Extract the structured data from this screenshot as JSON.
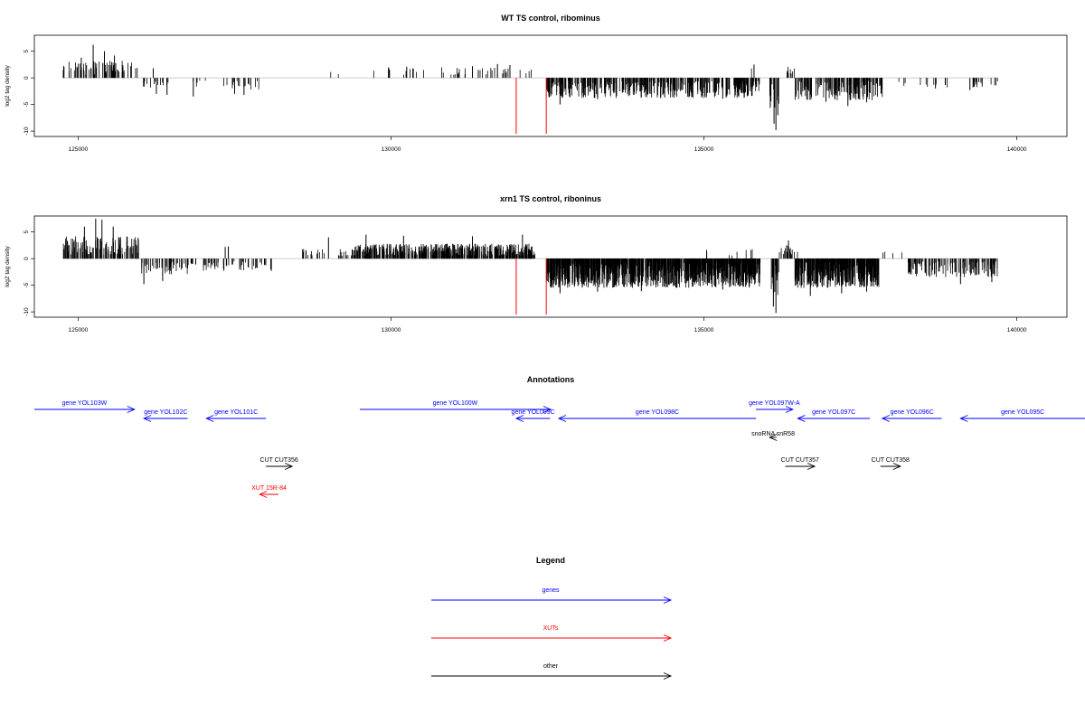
{
  "chart_data": [
    {
      "type": "bar",
      "title": "WT TS control, ribominus",
      "xlabel": "",
      "ylabel": "log2 tag density",
      "xlim": [
        124300,
        140800
      ],
      "ylim": [
        -11,
        8
      ],
      "xticks": [
        125000,
        130000,
        135000,
        140000
      ],
      "yticks": [
        5,
        0,
        -5,
        -10
      ],
      "baseline_color": "#bbbbbb",
      "bar_color": "#000000",
      "marker_color": "#ff0000",
      "markers": [
        {
          "x": 132000,
          "ymin": -10.5,
          "ymax": 0
        },
        {
          "x": 132480,
          "ymin": -10.5,
          "ymax": 0
        }
      ],
      "regions": [
        {
          "x0": 124750,
          "x1": 125950,
          "ymin": 0.6,
          "ymax": 3.2,
          "density": 0.06,
          "spikes": [
            [
              125240,
              6.2
            ],
            [
              125420,
              5.0
            ],
            [
              125050,
              3.8
            ],
            [
              125580,
              4.2
            ]
          ]
        },
        {
          "x0": 126000,
          "x1": 126450,
          "ymin": -1.8,
          "ymax": -0.5,
          "density": 0.03,
          "spikes": [
            [
              126250,
              -3.0
            ],
            [
              126420,
              -3.2
            ],
            [
              126200,
              1.8
            ]
          ]
        },
        {
          "x0": 126800,
          "x1": 127200,
          "ymin": -2.0,
          "ymax": -0.5,
          "density": 0.012,
          "spikes": [
            [
              126840,
              -3.5
            ]
          ]
        },
        {
          "x0": 127300,
          "x1": 127900,
          "ymin": -2.2,
          "ymax": -0.5,
          "density": 0.03,
          "spikes": [
            [
              127500,
              -3.0
            ],
            [
              127650,
              -3.2
            ]
          ]
        },
        {
          "x0": 128950,
          "x1": 129450,
          "ymin": 0.4,
          "ymax": 1.2,
          "density": 0.004,
          "spikes": []
        },
        {
          "x0": 129700,
          "x1": 130600,
          "ymin": 0.5,
          "ymax": 1.8,
          "density": 0.012,
          "spikes": [
            [
              129960,
              2.0
            ],
            [
              130250,
              2.1
            ]
          ]
        },
        {
          "x0": 130750,
          "x1": 132100,
          "ymin": 0.5,
          "ymax": 2.0,
          "density": 0.022,
          "spikes": [
            [
              131700,
              2.6
            ],
            [
              131900,
              2.4
            ],
            [
              131300,
              2.2
            ]
          ]
        },
        {
          "x0": 132100,
          "x1": 132300,
          "ymin": 0.5,
          "ymax": 2.0,
          "density": 0.015,
          "spikes": []
        },
        {
          "x0": 132480,
          "x1": 135900,
          "ymin": -3.8,
          "ymax": -0.5,
          "density": 0.12,
          "spikes": [
            [
              132700,
              -5.0
            ],
            [
              133300,
              -4.0
            ],
            [
              134500,
              -3.6
            ],
            [
              135300,
              -3.9
            ]
          ]
        },
        {
          "x0": 135750,
          "x1": 135850,
          "ymin": 1.5,
          "ymax": 2.5,
          "density": 0.01,
          "spikes": [
            [
              135800,
              2.5
            ]
          ]
        },
        {
          "x0": 136050,
          "x1": 136200,
          "ymin": -6.0,
          "ymax": -1.0,
          "density": 0.1,
          "spikes": [
            [
              136150,
              -9.8
            ],
            [
              136120,
              -8.6
            ],
            [
              136180,
              -7.0
            ]
          ]
        },
        {
          "x0": 136300,
          "x1": 136450,
          "ymin": 0.8,
          "ymax": 2.2,
          "density": 0.05,
          "spikes": []
        },
        {
          "x0": 136450,
          "x1": 137850,
          "ymin": -4.2,
          "ymax": -0.5,
          "density": 0.11,
          "spikes": [
            [
              136950,
              -4.5
            ],
            [
              137300,
              -5.3
            ],
            [
              137600,
              -4.6
            ]
          ]
        },
        {
          "x0": 137950,
          "x1": 138900,
          "ymin": -1.8,
          "ymax": -0.4,
          "density": 0.012,
          "spikes": [
            [
              138700,
              -2.0
            ]
          ]
        },
        {
          "x0": 139250,
          "x1": 139700,
          "ymin": -1.8,
          "ymax": -0.5,
          "density": 0.04,
          "spikes": [
            [
              139250,
              -2.3
            ]
          ]
        }
      ]
    },
    {
      "type": "bar",
      "title": "xrn1 TS control, riboninus",
      "xlabel": "",
      "ylabel": "log2 tag density",
      "xlim": [
        124300,
        140800
      ],
      "ylim": [
        -11,
        8
      ],
      "xticks": [
        125000,
        130000,
        135000,
        140000
      ],
      "yticks": [
        5,
        0,
        -5,
        -10
      ],
      "baseline_color": "#bbbbbb",
      "bar_color": "#000000",
      "marker_color": "#ff0000",
      "markers": [
        {
          "x": 132000,
          "ymin": -10.5,
          "ymax": 0
        },
        {
          "x": 132480,
          "ymin": -10.5,
          "ymax": 0
        }
      ],
      "regions": [
        {
          "x0": 124750,
          "x1": 126000,
          "ymin": 0.8,
          "ymax": 4.2,
          "density": 0.1,
          "spikes": [
            [
              125280,
              7.5
            ],
            [
              125380,
              7.3
            ],
            [
              125100,
              6.0
            ],
            [
              125560,
              6.0
            ]
          ]
        },
        {
          "x0": 126000,
          "x1": 126900,
          "ymin": -3.0,
          "ymax": -0.5,
          "density": 0.06,
          "spikes": [
            [
              126050,
              -4.8
            ],
            [
              126350,
              -4.2
            ]
          ]
        },
        {
          "x0": 127000,
          "x1": 128100,
          "ymin": -2.5,
          "ymax": -0.5,
          "density": 0.045,
          "spikes": [
            [
              127350,
              2.2
            ],
            [
              127400,
              2.3
            ]
          ]
        },
        {
          "x0": 128500,
          "x1": 129400,
          "ymin": 0.5,
          "ymax": 2.0,
          "density": 0.03,
          "spikes": []
        },
        {
          "x0": 129400,
          "x1": 132300,
          "ymin": 0.5,
          "ymax": 2.8,
          "density": 0.16,
          "spikes": [
            [
              129000,
              4.0
            ],
            [
              129600,
              4.5
            ],
            [
              130200,
              4.3
            ],
            [
              131300,
              4.2
            ],
            [
              132100,
              4.5
            ]
          ]
        },
        {
          "x0": 132480,
          "x1": 135900,
          "ymin": -5.5,
          "ymax": -0.5,
          "density": 0.28,
          "spikes": [
            [
              132700,
              -6.5
            ],
            [
              133300,
              -6.2
            ],
            [
              134000,
              -6.1
            ],
            [
              135300,
              -5.8
            ]
          ]
        },
        {
          "x0": 135000,
          "x1": 135800,
          "ymin": 0.5,
          "ymax": 2.0,
          "density": 0.01,
          "spikes": []
        },
        {
          "x0": 136050,
          "x1": 136200,
          "ymin": -7.0,
          "ymax": -1.0,
          "density": 0.12,
          "spikes": [
            [
              136150,
              -10.2
            ],
            [
              136110,
              -9.0
            ]
          ]
        },
        {
          "x0": 136200,
          "x1": 136500,
          "ymin": 0.8,
          "ymax": 2.5,
          "density": 0.06,
          "spikes": [
            [
              136350,
              3.4
            ]
          ]
        },
        {
          "x0": 136450,
          "x1": 137800,
          "ymin": -5.5,
          "ymax": -0.5,
          "density": 0.3,
          "spikes": [
            [
              136700,
              -7.0
            ],
            [
              137200,
              -6.5
            ],
            [
              137600,
              -6.2
            ]
          ]
        },
        {
          "x0": 137800,
          "x1": 138200,
          "ymin": 0.5,
          "ymax": 1.5,
          "density": 0.01,
          "spikes": []
        },
        {
          "x0": 138250,
          "x1": 139700,
          "ymin": -3.5,
          "ymax": -0.5,
          "density": 0.09,
          "spikes": [
            [
              139100,
              -4.8
            ],
            [
              139600,
              -4.4
            ]
          ]
        }
      ]
    }
  ],
  "annotations": {
    "title": "Annotations",
    "features": [
      {
        "label": "gene YOL103W",
        "start": 124300,
        "end": 125900,
        "strand": "+",
        "row": 0,
        "kind": "gene"
      },
      {
        "label": "gene YOL102C",
        "start": 126050,
        "end": 126750,
        "strand": "-",
        "row": 1,
        "kind": "gene"
      },
      {
        "label": "gene YOL101C",
        "start": 127050,
        "end": 128000,
        "strand": "-",
        "row": 1,
        "kind": "gene"
      },
      {
        "label": "gene YOL100W",
        "start": 129500,
        "end": 132550,
        "strand": "+",
        "row": 0,
        "kind": "gene"
      },
      {
        "label": "gene YOL099C",
        "start": 132000,
        "end": 132540,
        "strand": "-",
        "row": 1,
        "kind": "gene"
      },
      {
        "label": "gene YOL098C",
        "start": 132680,
        "end": 135830,
        "strand": "-",
        "row": 1,
        "kind": "gene"
      },
      {
        "label": "gene YOL097W-A",
        "start": 135830,
        "end": 136420,
        "strand": "+",
        "row": 0,
        "kind": "gene"
      },
      {
        "label": "gene YOL097C",
        "start": 136500,
        "end": 137650,
        "strand": "-",
        "row": 1,
        "kind": "gene"
      },
      {
        "label": "gene YOL096C",
        "start": 137850,
        "end": 138800,
        "strand": "-",
        "row": 1,
        "kind": "gene"
      },
      {
        "label": "gene YOL095C",
        "start": 139100,
        "end": 141500,
        "strand": "-",
        "row": 1,
        "kind": "gene"
      },
      {
        "label": "snoRNA snR58",
        "start": 136050,
        "end": 136160,
        "strand": "-",
        "row": 2,
        "kind": "other"
      },
      {
        "label": "CUT CUT356",
        "start": 128000,
        "end": 128420,
        "strand": "+",
        "row": 3,
        "kind": "other"
      },
      {
        "label": "CUT CUT357",
        "start": 136300,
        "end": 136770,
        "strand": "+",
        "row": 3,
        "kind": "other"
      },
      {
        "label": "CUT CUT358",
        "start": 137820,
        "end": 138140,
        "strand": "+",
        "row": 3,
        "kind": "other"
      },
      {
        "label": "XUT 15R-84",
        "start": 127900,
        "end": 128200,
        "strand": "-",
        "row": 4,
        "kind": "xut"
      }
    ]
  },
  "legend": {
    "title": "Legend",
    "items": [
      {
        "label": "genes",
        "color": "#0000ff"
      },
      {
        "label": "XUTs",
        "color": "#ff0000"
      },
      {
        "label": "other",
        "color": "#000000"
      }
    ]
  },
  "colors": {
    "gene": "#0000ff",
    "xut": "#ff0000",
    "other": "#000000"
  }
}
